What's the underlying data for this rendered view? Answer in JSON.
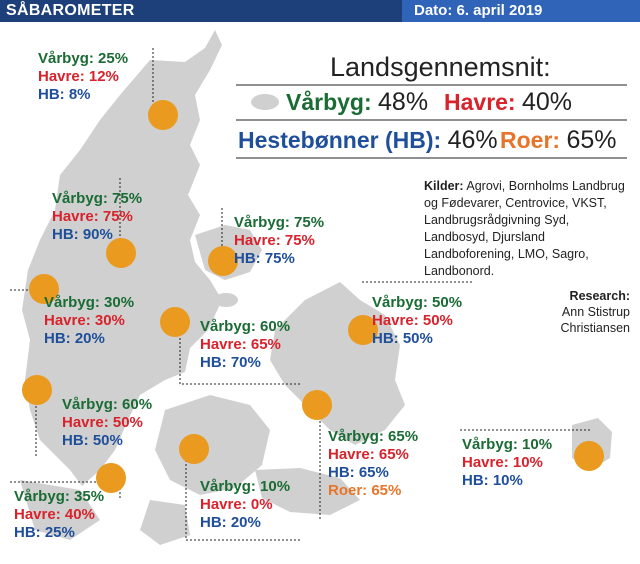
{
  "header": {
    "title": "SÅBAROMETER",
    "date": "Dato: 6. april 2019"
  },
  "national": {
    "title": "Landsgennemsnit:",
    "items": [
      {
        "label": "Vårbyg:",
        "value": "48%",
        "color": "#1a6b34"
      },
      {
        "label": "Havre:",
        "value": "40%",
        "color": "#d8222c"
      },
      {
        "label": "Hestebønner (HB):",
        "value": "46%",
        "color": "#1f4f9a"
      },
      {
        "label": "Roer:",
        "value": "65%",
        "color": "#e8742a"
      }
    ]
  },
  "sources": {
    "label": "Kilder:",
    "text": " Agrovi, Bornholms Landbrug og Fødevarer, Centrovice, VKST, Landbrugsrådgivning Syd, Landbosyd, Djursland Landboforening, LMO, Sagro, Landbonord."
  },
  "research": {
    "label": "Research:",
    "name": "Ann Stistrup Christiansen"
  },
  "regions": [
    {
      "id": "north",
      "lines": [
        {
          "text": "Vårbyg: 25%",
          "kind": "g"
        },
        {
          "text": "Havre: 12%",
          "kind": "r"
        },
        {
          "text": "HB: 8%",
          "kind": "b"
        }
      ]
    },
    {
      "id": "himmerland",
      "lines": [
        {
          "text": "Vårbyg: 75%",
          "kind": "g"
        },
        {
          "text": "Havre: 75%",
          "kind": "r"
        },
        {
          "text": "HB: 90%",
          "kind": "b"
        }
      ]
    },
    {
      "id": "djursland",
      "lines": [
        {
          "text": "Vårbyg: 75%",
          "kind": "g"
        },
        {
          "text": "Havre: 75%",
          "kind": "r"
        },
        {
          "text": "HB: 75%",
          "kind": "b"
        }
      ]
    },
    {
      "id": "west",
      "lines": [
        {
          "text": "Vårbyg: 30%",
          "kind": "g"
        },
        {
          "text": "Havre: 30%",
          "kind": "r"
        },
        {
          "text": "HB: 20%",
          "kind": "b"
        }
      ]
    },
    {
      "id": "central",
      "lines": [
        {
          "text": "Vårbyg: 60%",
          "kind": "g"
        },
        {
          "text": "Havre: 65%",
          "kind": "r"
        },
        {
          "text": "HB: 70%",
          "kind": "b"
        }
      ]
    },
    {
      "id": "northzealand",
      "lines": [
        {
          "text": "Vårbyg: 50%",
          "kind": "g"
        },
        {
          "text": "Havre: 50%",
          "kind": "r"
        },
        {
          "text": "HB: 50%",
          "kind": "b"
        }
      ]
    },
    {
      "id": "southwest",
      "lines": [
        {
          "text": "Vårbyg: 60%",
          "kind": "g"
        },
        {
          "text": "Havre: 50%",
          "kind": "r"
        },
        {
          "text": "HB: 50%",
          "kind": "b"
        }
      ]
    },
    {
      "id": "lolland",
      "lines": [
        {
          "text": "Vårbyg: 65%",
          "kind": "g"
        },
        {
          "text": "Havre: 65%",
          "kind": "r"
        },
        {
          "text": "HB: 65%",
          "kind": "b"
        },
        {
          "text": "Roer: 65%",
          "kind": "o"
        }
      ]
    },
    {
      "id": "bornholm",
      "lines": [
        {
          "text": "Vårbyg: 10%",
          "kind": "g"
        },
        {
          "text": "Havre: 10%",
          "kind": "r"
        },
        {
          "text": "HB: 10%",
          "kind": "b"
        }
      ]
    },
    {
      "id": "south",
      "lines": [
        {
          "text": "Vårbyg: 35%",
          "kind": "g"
        },
        {
          "text": "Havre: 40%",
          "kind": "r"
        },
        {
          "text": "HB: 25%",
          "kind": "b"
        }
      ]
    },
    {
      "id": "funen",
      "lines": [
        {
          "text": "Vårbyg: 10%",
          "kind": "g"
        },
        {
          "text": "Havre: 0%",
          "kind": "r"
        },
        {
          "text": "HB: 20%",
          "kind": "b"
        }
      ]
    }
  ],
  "colors": {
    "header": "#1d3f7a",
    "header_date": "#2f64b8",
    "land": "#cfd0cf",
    "dot": "#ea9a1f"
  }
}
